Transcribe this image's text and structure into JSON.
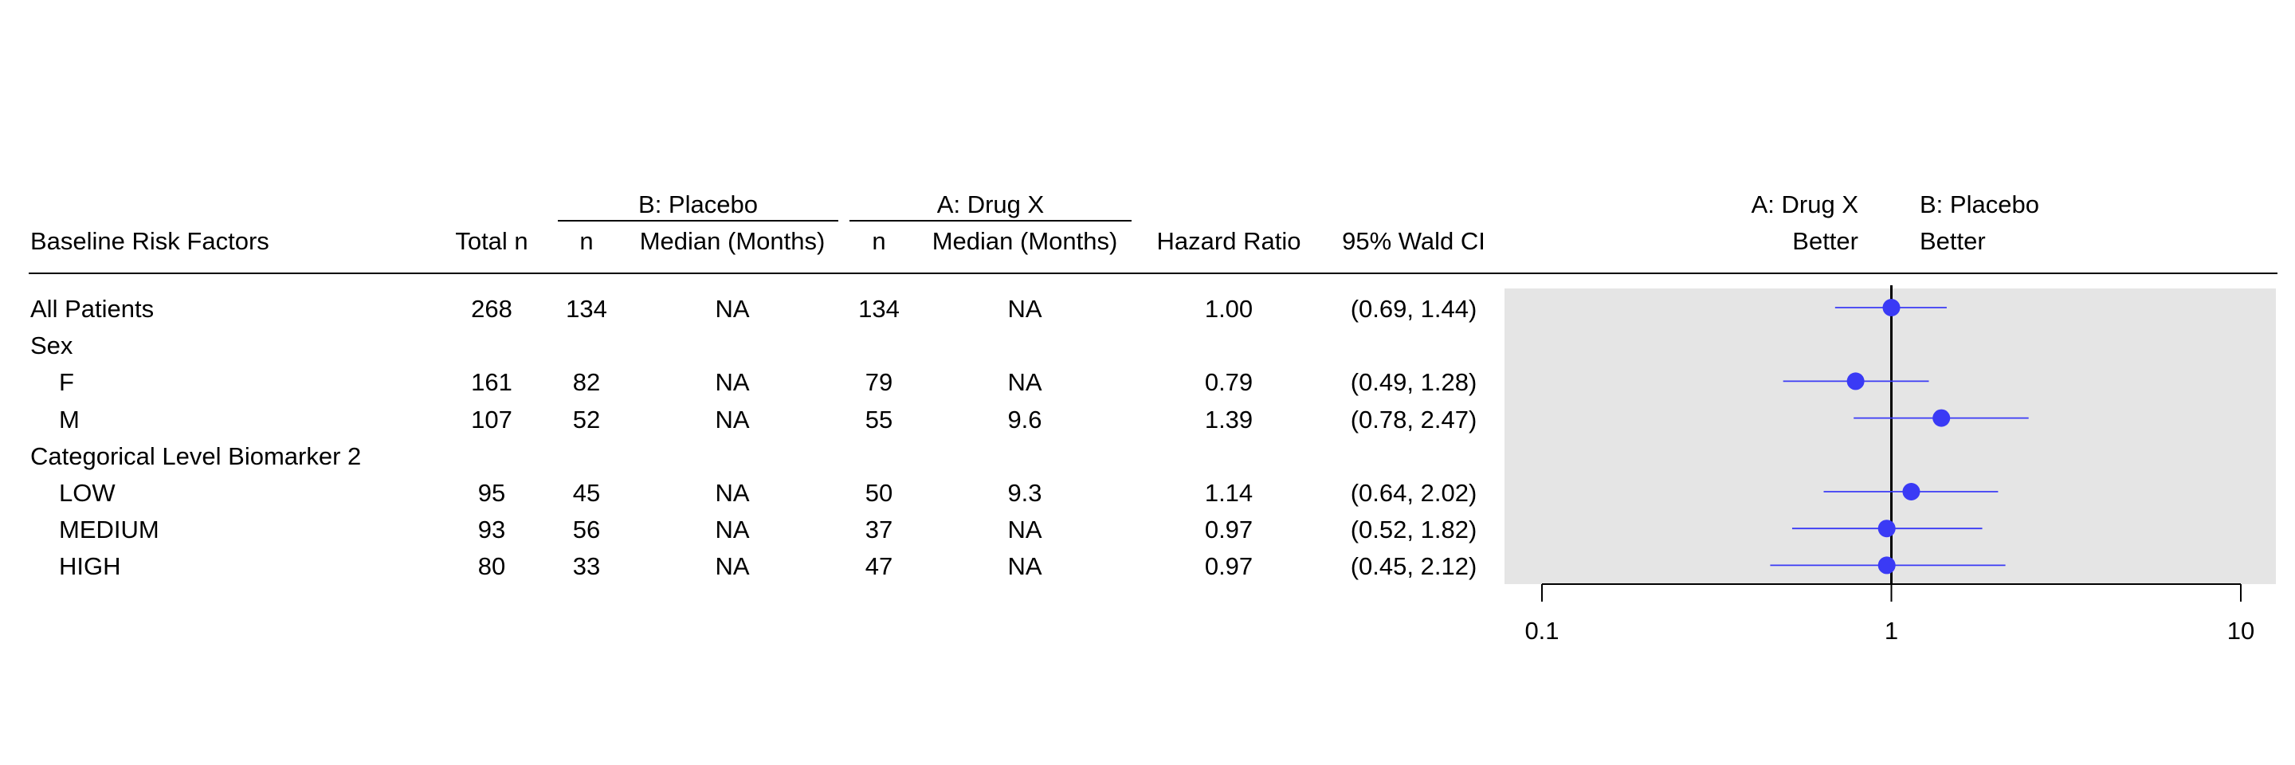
{
  "table": {
    "group_headers": {
      "placebo": "B: Placebo",
      "drug": "A: Drug X"
    },
    "columns": {
      "factor": "Baseline Risk Factors",
      "total_n": "Total n",
      "placebo_n": "n",
      "placebo_median": "Median (Months)",
      "drug_n": "n",
      "drug_median": "Median (Months)",
      "hr": "Hazard Ratio",
      "ci": "95% Wald CI"
    },
    "rows": [
      {
        "label": "All Patients",
        "indent": false,
        "total_n": "268",
        "placebo_n": "134",
        "placebo_median": "NA",
        "drug_n": "134",
        "drug_median": "NA",
        "hr": "1.00",
        "ci": "(0.69, 1.44)"
      },
      {
        "label": "Sex",
        "indent": false,
        "total_n": "",
        "placebo_n": "",
        "placebo_median": "",
        "drug_n": "",
        "drug_median": "",
        "hr": "",
        "ci": ""
      },
      {
        "label": "F",
        "indent": true,
        "total_n": "161",
        "placebo_n": "82",
        "placebo_median": "NA",
        "drug_n": "79",
        "drug_median": "NA",
        "hr": "0.79",
        "ci": "(0.49, 1.28)"
      },
      {
        "label": "M",
        "indent": true,
        "total_n": "107",
        "placebo_n": "52",
        "placebo_median": "NA",
        "drug_n": "55",
        "drug_median": "9.6",
        "hr": "1.39",
        "ci": "(0.78, 2.47)"
      },
      {
        "label": "Categorical Level Biomarker 2",
        "indent": false,
        "total_n": "",
        "placebo_n": "",
        "placebo_median": "",
        "drug_n": "",
        "drug_median": "",
        "hr": "",
        "ci": ""
      },
      {
        "label": "LOW",
        "indent": true,
        "total_n": "95",
        "placebo_n": "45",
        "placebo_median": "NA",
        "drug_n": "50",
        "drug_median": "9.3",
        "hr": "1.14",
        "ci": "(0.64, 2.02)"
      },
      {
        "label": "MEDIUM",
        "indent": true,
        "total_n": "93",
        "placebo_n": "56",
        "placebo_median": "NA",
        "drug_n": "37",
        "drug_median": "NA",
        "hr": "0.97",
        "ci": "(0.52, 1.82)"
      },
      {
        "label": "HIGH",
        "indent": true,
        "total_n": "80",
        "placebo_n": "33",
        "placebo_median": "NA",
        "drug_n": "47",
        "drug_median": "NA",
        "hr": "0.97",
        "ci": "(0.45, 2.12)"
      }
    ]
  },
  "forest": {
    "left_label": [
      "A: Drug X",
      "Better"
    ],
    "right_label": [
      "B: Placebo",
      "Better"
    ],
    "tick_labels": [
      "0.1",
      "1",
      "10"
    ]
  },
  "chart_data": {
    "type": "scatter",
    "x_scale": "log",
    "xlim": [
      0.1,
      10
    ],
    "x_ticks": [
      0.1,
      1,
      10
    ],
    "reference_line": 1,
    "categories": [
      "All Patients",
      "F",
      "M",
      "LOW",
      "MEDIUM",
      "HIGH"
    ],
    "points": [
      {
        "label": "All Patients",
        "hr": 1.0,
        "lcl": 0.69,
        "ucl": 1.44
      },
      {
        "label": "F",
        "hr": 0.79,
        "lcl": 0.49,
        "ucl": 1.28
      },
      {
        "label": "M",
        "hr": 1.39,
        "lcl": 0.78,
        "ucl": 2.47
      },
      {
        "label": "LOW",
        "hr": 1.14,
        "lcl": 0.64,
        "ucl": 2.02
      },
      {
        "label": "MEDIUM",
        "hr": 0.97,
        "lcl": 0.52,
        "ucl": 1.82
      },
      {
        "label": "HIGH",
        "hr": 0.97,
        "lcl": 0.45,
        "ucl": 2.12
      }
    ],
    "colors": {
      "point": "#3a3af5",
      "panel": "#e5e5e5"
    }
  }
}
